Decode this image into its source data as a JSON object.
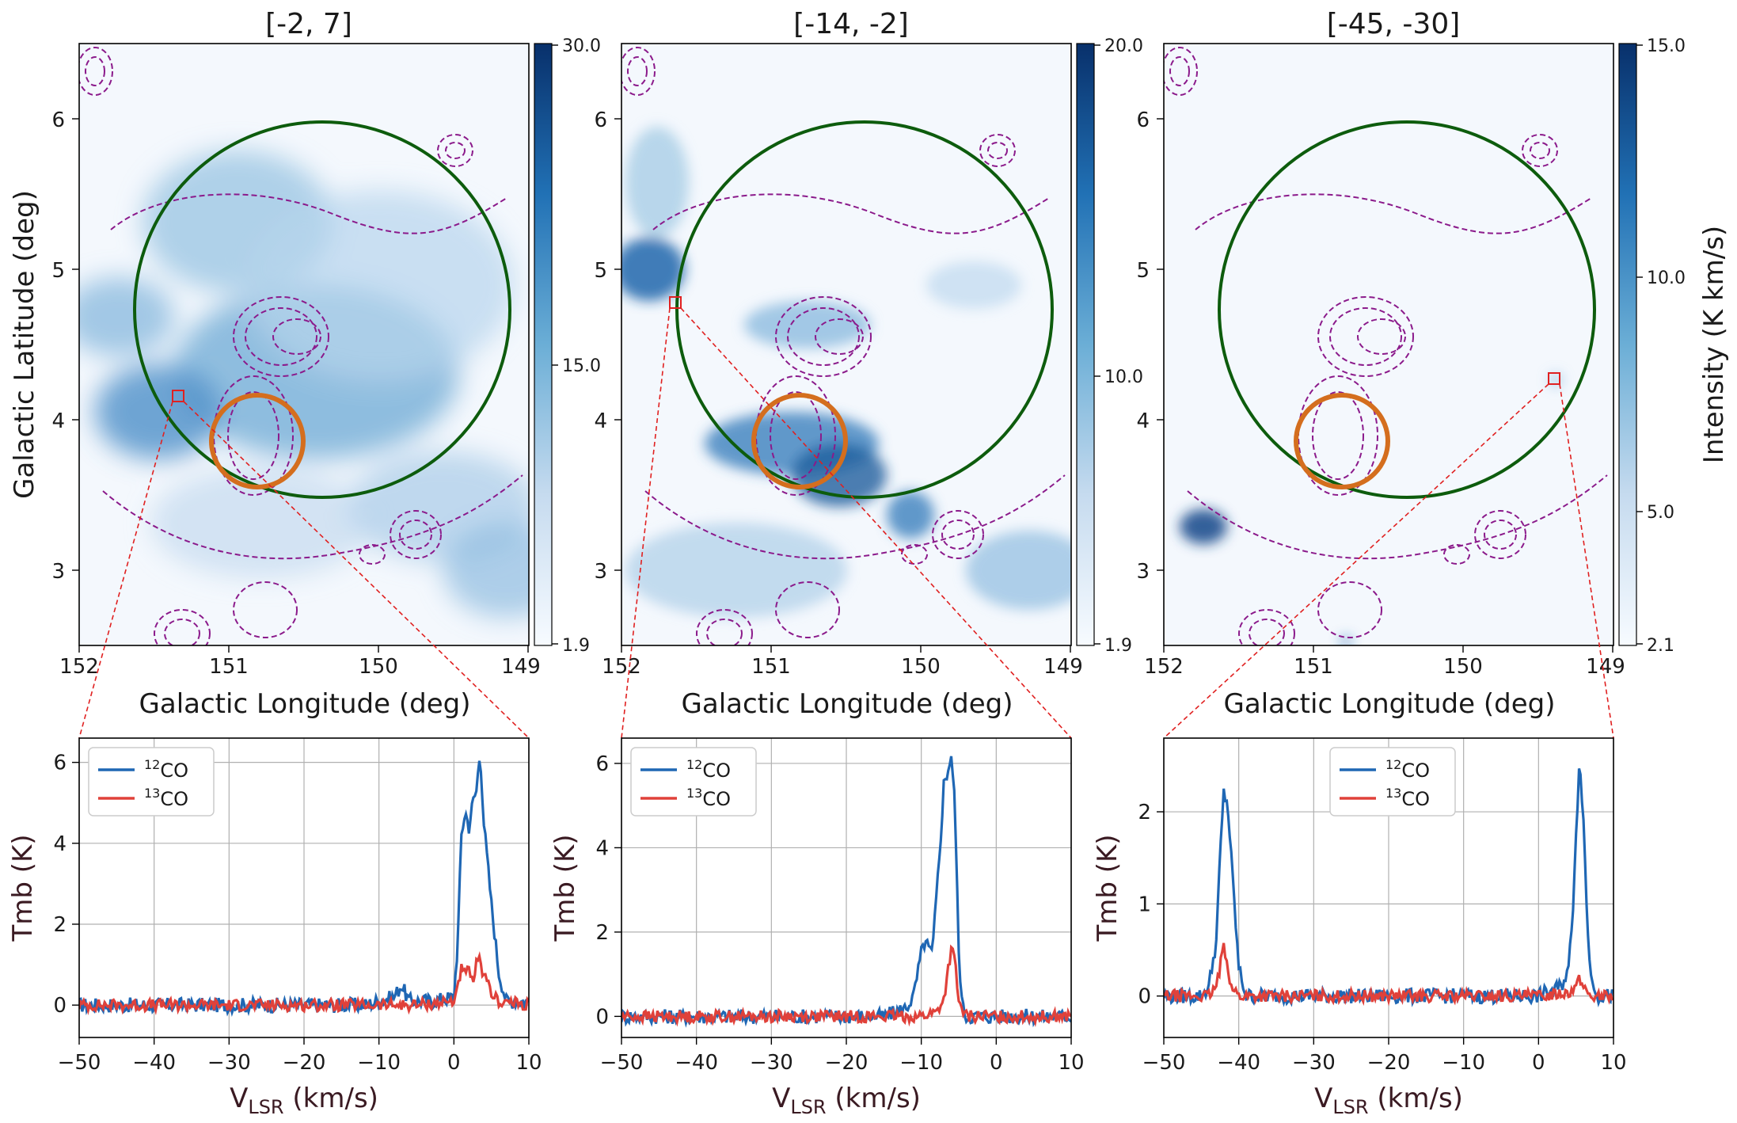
{
  "figure": {
    "maps": [
      {
        "title": "[-2, 7]",
        "colorbar": {
          "min": "1.9",
          "mid": "15.0",
          "max": "30.0",
          "range": [
            1.9,
            30.0
          ],
          "tick_values": [
            1.9,
            15.0,
            30.0
          ]
        },
        "zoom_box_lonlat": [
          151.2,
          4.15
        ]
      },
      {
        "title": "[-14, -2]",
        "colorbar": {
          "min": "1.9",
          "mid": "10.0",
          "max": "20.0",
          "range": [
            1.9,
            20.0
          ],
          "tick_values": [
            1.9,
            10.0,
            20.0
          ]
        },
        "zoom_box_lonlat": [
          151.71,
          4.78
        ]
      },
      {
        "title": "[-45, -30]",
        "colorbar": {
          "min": "2.1",
          "low": "5.0",
          "mid": "10.0",
          "max": "15.0",
          "range": [
            2.1,
            15.0
          ],
          "tick_values": [
            2.1,
            5.0,
            10.0,
            15.0
          ],
          "label": "Intensity (K km/s)"
        },
        "zoom_box_lonlat": [
          149.42,
          4.27
        ]
      }
    ],
    "map_axes": {
      "xlabel": "Galactic Longitude (deg)",
      "ylabel": "Galactic Latitude (deg)",
      "xticks": [
        "152",
        "151",
        "150",
        "149"
      ],
      "yticks": [
        "3",
        "4",
        "5",
        "6"
      ],
      "xlim": [
        152,
        149
      ],
      "ylim": [
        2.5,
        6.5
      ]
    },
    "spectra_axes": {
      "xlabel_main": "V",
      "xlabel_sub": "LSR",
      "xlabel_unit": " (km/s)",
      "ylabel": "Tmb (K)",
      "xticks": [
        "−50",
        "−40",
        "−30",
        "−20",
        "−10",
        "0",
        "10"
      ],
      "legend_12co_sup": "12",
      "legend_13co_sup": "13",
      "legend_co": "CO"
    },
    "colors": {
      "co12": "#1f67b4",
      "co13": "#e0413a",
      "green_circle": "#0d5c0d",
      "orange_circle": "#d46e1e",
      "contour": "#8b1a8b",
      "zoom": "#e02020"
    }
  },
  "chart_data": [
    {
      "type": "heatmap",
      "title": "[-2, 7]",
      "xlabel": "Galactic Longitude (deg)",
      "ylabel": "Galactic Latitude (deg)",
      "xlim": [
        152,
        149
      ],
      "ylim": [
        2.5,
        6.5
      ],
      "colorbar_range": [
        1.9,
        30.0
      ],
      "colorbar_ticks": [
        1.9,
        15.0,
        30.0
      ]
    },
    {
      "type": "heatmap",
      "title": "[-14, -2]",
      "xlabel": "Galactic Longitude (deg)",
      "xlim": [
        152,
        149
      ],
      "ylim": [
        2.5,
        6.5
      ],
      "colorbar_range": [
        1.9,
        20.0
      ],
      "colorbar_ticks": [
        1.9,
        10.0,
        20.0
      ]
    },
    {
      "type": "heatmap",
      "title": "[-45, -30]",
      "xlabel": "Galactic Longitude (deg)",
      "xlim": [
        152,
        149
      ],
      "ylim": [
        2.5,
        6.5
      ],
      "colorbar_range": [
        2.1,
        15.0
      ],
      "colorbar_ticks": [
        2.1,
        5.0,
        10.0,
        15.0
      ],
      "colorbar_label": "Intensity (K km/s)"
    },
    {
      "type": "line",
      "xlabel": "VLSR (km/s)",
      "ylabel": "Tmb (K)",
      "xlim": [
        -50,
        10
      ],
      "ylim": [
        -0.8,
        6.6
      ],
      "yticks": [
        0,
        2,
        4,
        6
      ],
      "grid": true,
      "legend": "top-left",
      "series": [
        {
          "name": "12CO",
          "x": [
            -50,
            -40,
            -30,
            -20,
            -12,
            -8,
            -7,
            -6,
            -3,
            0,
            0.5,
            1,
            1.5,
            2,
            2.5,
            3,
            3.5,
            4,
            5,
            6,
            7,
            10
          ],
          "y": [
            0,
            0,
            0,
            0,
            0,
            0.2,
            0.5,
            0.1,
            0.1,
            0.2,
            1.5,
            4.2,
            4.8,
            4.4,
            5.0,
            5.3,
            6.3,
            4.5,
            2.5,
            0.8,
            0.1,
            0.1
          ]
        },
        {
          "name": "13CO",
          "x": [
            -50,
            -40,
            -30,
            -20,
            -10,
            -5,
            0,
            0.5,
            1,
            1.5,
            2,
            2.5,
            3,
            3.5,
            4,
            5,
            6,
            10
          ],
          "y": [
            0,
            0,
            0,
            0,
            0,
            0,
            0.1,
            0.5,
            0.9,
            0.7,
            0.9,
            0.5,
            1.0,
            1.1,
            0.7,
            0.3,
            0.1,
            0
          ]
        }
      ]
    },
    {
      "type": "line",
      "xlabel": "VLSR (km/s)",
      "ylabel": "Tmb (K)",
      "xlim": [
        -50,
        10
      ],
      "ylim": [
        -0.5,
        6.6
      ],
      "yticks": [
        0,
        2,
        4,
        6
      ],
      "grid": true,
      "legend": "top-left",
      "series": [
        {
          "name": "12CO",
          "x": [
            -50,
            -30,
            -15,
            -12,
            -11,
            -10,
            -9.5,
            -9,
            -8.5,
            -8,
            -7.5,
            -7,
            -6.5,
            -6,
            -5.5,
            -5,
            -4.5,
            -4,
            0,
            10
          ],
          "y": [
            0,
            0,
            0,
            0.2,
            0.5,
            1.5,
            1.8,
            1.6,
            1.5,
            2.8,
            4.0,
            5.5,
            5.8,
            6.2,
            5.0,
            1.5,
            0.2,
            0,
            0,
            0
          ]
        },
        {
          "name": "13CO",
          "x": [
            -50,
            -30,
            -10,
            -8,
            -7,
            -6.5,
            -6,
            -5.5,
            -5,
            -4,
            0,
            10
          ],
          "y": [
            0,
            0,
            0,
            0.1,
            0.4,
            1.0,
            1.6,
            1.3,
            0.3,
            0,
            0,
            0
          ]
        }
      ]
    },
    {
      "type": "line",
      "xlabel": "VLSR (km/s)",
      "ylabel": "Tmb (K)",
      "xlim": [
        -50,
        10
      ],
      "ylim": [
        -0.45,
        2.8
      ],
      "yticks": [
        0,
        1,
        2
      ],
      "grid": true,
      "legend": "top-center",
      "series": [
        {
          "name": "12CO",
          "x": [
            -50,
            -45,
            -44,
            -43,
            -42.5,
            -42,
            -41.5,
            -41,
            -40,
            -39,
            -30,
            -20,
            -10,
            0,
            3,
            4,
            4.5,
            5,
            5.5,
            6,
            6.5,
            7,
            8,
            10
          ],
          "y": [
            0,
            0,
            0.1,
            0.6,
            1.5,
            2.2,
            2.1,
            1.5,
            0.3,
            0,
            0,
            0,
            0,
            0,
            0.1,
            0.3,
            0.8,
            1.8,
            2.6,
            1.9,
            0.8,
            0.2,
            0,
            0
          ]
        },
        {
          "name": "13CO",
          "x": [
            -50,
            -44,
            -43,
            -42.5,
            -42,
            -41.5,
            -41,
            -40,
            -30,
            -20,
            -10,
            0,
            4,
            5,
            5.5,
            6,
            7,
            10
          ],
          "y": [
            0,
            0,
            0.1,
            0.3,
            0.57,
            0.35,
            0.1,
            0,
            0,
            0,
            0,
            0,
            0.05,
            0.1,
            0.18,
            0.1,
            0,
            0
          ]
        }
      ]
    }
  ]
}
